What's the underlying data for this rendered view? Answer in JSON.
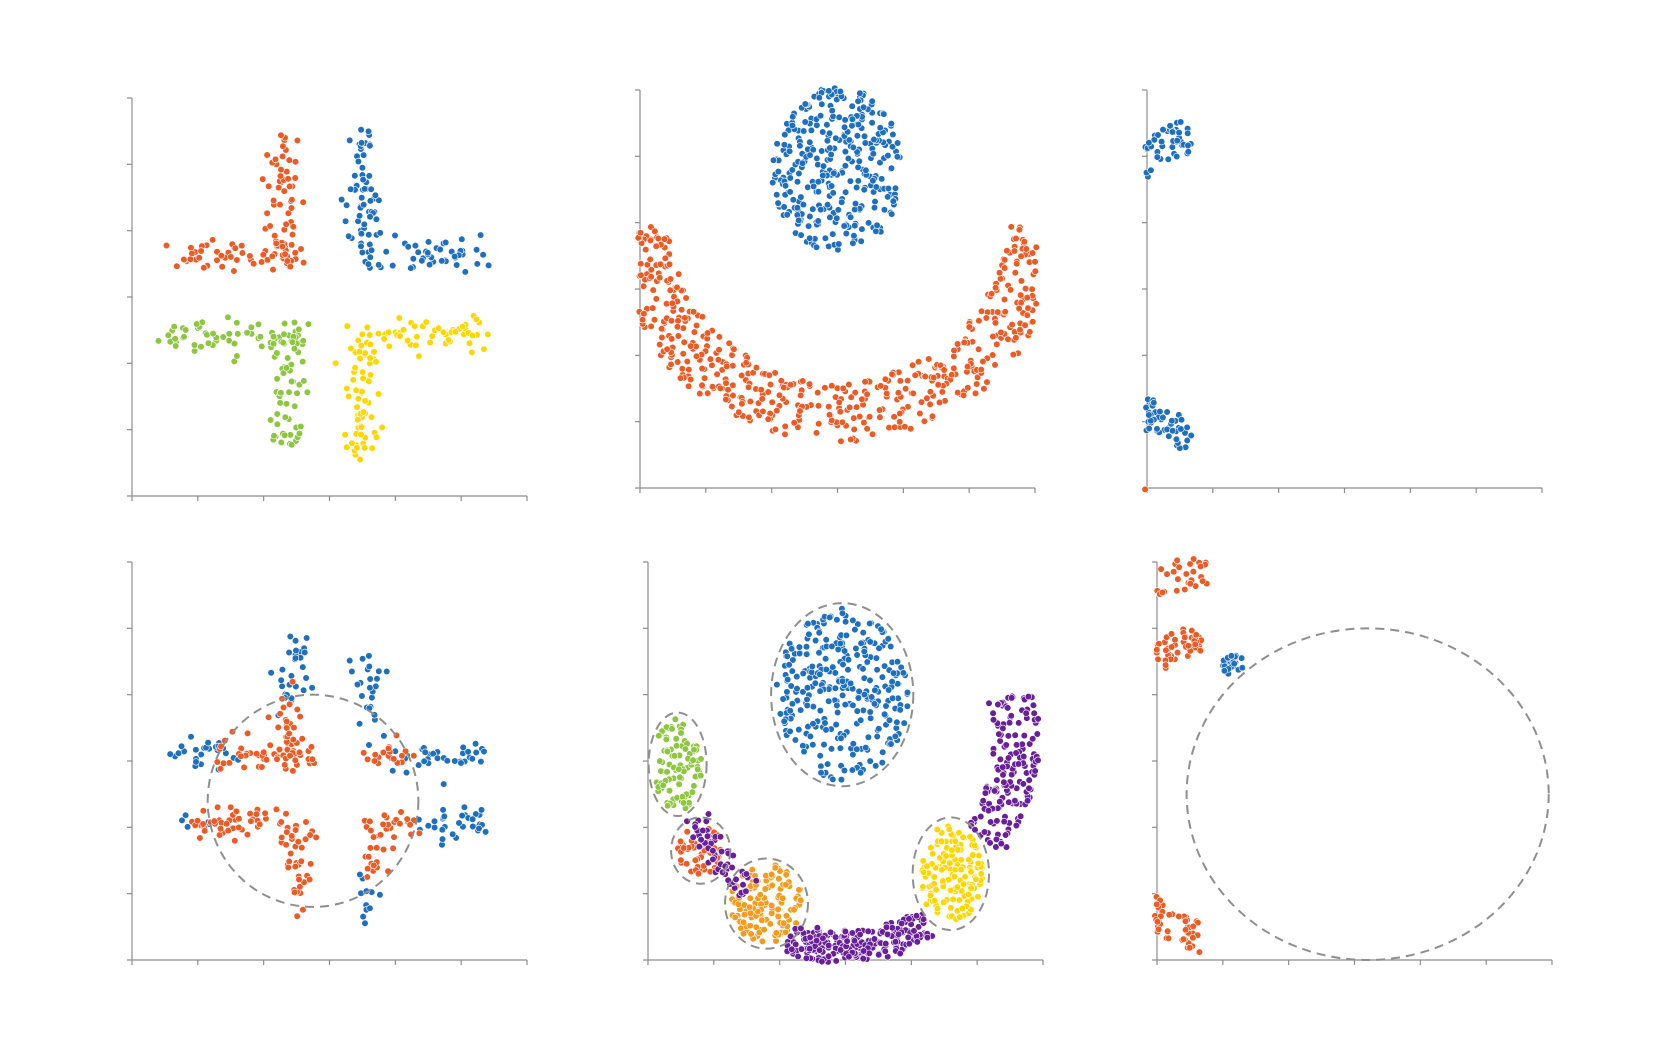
{
  "colors": {
    "axis": "#8c8c8c",
    "blue": "#1f6fc0",
    "orange": "#ee5a24",
    "green": "#8dc63f",
    "yellow": "#ffd700",
    "purple": "#6a1f9a",
    "amber": "#f59a1a",
    "dashed_outline": "#8f8f8f"
  },
  "chart_data": [
    {
      "type": "scatter",
      "title": "",
      "xlabel": "",
      "ylabel": "",
      "xlim": [
        0,
        6
      ],
      "ylim": [
        0,
        6
      ],
      "grid": false,
      "shapes": [
        {
          "kind": "segments",
          "color": "orange",
          "n": 110,
          "spread": 0.12,
          "segs": [
            [
              0.6,
              3.6,
              2.6,
              3.6
            ],
            [
              2.3,
              3.6,
              2.3,
              5.5
            ]
          ]
        },
        {
          "kind": "segments",
          "color": "blue",
          "n": 110,
          "spread": 0.12,
          "segs": [
            [
              3.5,
              3.6,
              5.4,
              3.6
            ],
            [
              3.5,
              3.6,
              3.5,
              5.5
            ]
          ]
        },
        {
          "kind": "segments",
          "color": "green",
          "n": 120,
          "spread": 0.14,
          "segs": [
            [
              0.6,
              2.4,
              2.6,
              2.4
            ],
            [
              2.4,
              2.4,
              2.4,
              0.8
            ]
          ]
        },
        {
          "kind": "segments",
          "color": "yellow",
          "n": 120,
          "spread": 0.14,
          "segs": [
            [
              3.5,
              2.4,
              5.4,
              2.4
            ],
            [
              3.5,
              2.4,
              3.5,
              0.7
            ]
          ]
        }
      ]
    },
    {
      "type": "scatter",
      "title": "",
      "xlabel": "",
      "ylabel": "",
      "xlim": [
        0,
        6
      ],
      "ylim": [
        0,
        6
      ],
      "grid": false,
      "shapes": [
        {
          "kind": "ellipse",
          "color": "blue",
          "n": 330,
          "cx": 3.0,
          "cy": 4.8,
          "rx": 1.0,
          "ry": 1.25
        },
        {
          "kind": "arc",
          "color": "orange",
          "n": 560,
          "cx": 3.0,
          "cy": 4.2,
          "r": 3.05,
          "width": 0.9,
          "a0": 185,
          "a1": 355
        }
      ]
    },
    {
      "type": "scatter",
      "title": "",
      "xlabel": "",
      "ylabel": "",
      "xlim": [
        0,
        6
      ],
      "ylim": [
        0,
        6
      ],
      "grid": false,
      "shapes": [
        {
          "kind": "arc",
          "color": "blue",
          "n": 280,
          "cx": 1.0,
          "cy": 3.05,
          "r": 2.3,
          "width": 0.5,
          "a0": 100,
          "a1": 260,
          "sx": 0.8
        },
        {
          "kind": "arc",
          "color": "orange",
          "n": 420,
          "cx": 1.0,
          "cy": 3.0,
          "r": 3.5,
          "width": 0.55,
          "a0": 95,
          "a1": 265,
          "sx": 0.85
        }
      ]
    },
    {
      "type": "scatter",
      "title": "",
      "xlabel": "",
      "ylabel": "",
      "xlim": [
        0,
        6
      ],
      "ylim": [
        0,
        6
      ],
      "grid": false,
      "shapes": [
        {
          "kind": "segments",
          "color": "blue",
          "n": 55,
          "spread": 0.12,
          "segs": [
            [
              0.7,
              3.05,
              1.4,
              3.05
            ],
            [
              2.4,
              3.9,
              2.4,
              4.8
            ]
          ]
        },
        {
          "kind": "segments",
          "color": "blue",
          "n": 60,
          "spread": 0.12,
          "segs": [
            [
              3.9,
              3.05,
              5.4,
              3.05
            ],
            [
              3.6,
              3.6,
              3.6,
              4.7
            ]
          ]
        },
        {
          "kind": "segments",
          "color": "blue",
          "n": 50,
          "spread": 0.12,
          "segs": [
            [
              0.8,
              2.05,
              1.2,
              2.05
            ],
            [
              4.3,
              2.05,
              5.4,
              2.05
            ],
            [
              3.6,
              0.8,
              3.6,
              1.3
            ]
          ]
        },
        {
          "kind": "segments",
          "color": "orange",
          "n": 220,
          "spread": 0.12,
          "segs": [
            [
              1.3,
              3.1,
              2.8,
              3.1
            ],
            [
              2.4,
              3.1,
              2.4,
              3.9
            ],
            [
              3.6,
              3.1,
              4.1,
              3.1
            ],
            [
              1.0,
              2.05,
              2.7,
              2.05
            ],
            [
              2.5,
              2.05,
              2.5,
              0.9
            ],
            [
              3.6,
              2.05,
              4.2,
              2.05
            ],
            [
              3.7,
              2.05,
              3.7,
              1.3
            ]
          ]
        }
      ],
      "outline": {
        "cx": 2.75,
        "cy": 2.4,
        "rx": 1.6,
        "ry": 1.6
      }
    },
    {
      "type": "scatter",
      "title": "",
      "xlabel": "",
      "ylabel": "",
      "xlim": [
        0,
        6
      ],
      "ylim": [
        0,
        6
      ],
      "grid": false,
      "shapes": [
        {
          "kind": "ellipse",
          "color": "blue",
          "n": 300,
          "cx": 2.95,
          "cy": 4.0,
          "rx": 1.0,
          "ry": 1.3
        },
        {
          "kind": "ellipse",
          "color": "green",
          "n": 90,
          "cx": 0.45,
          "cy": 2.95,
          "rx": 0.38,
          "ry": 0.7
        },
        {
          "kind": "ellipse",
          "color": "orange",
          "n": 50,
          "cx": 0.8,
          "cy": 1.65,
          "rx": 0.35,
          "ry": 0.4
        },
        {
          "kind": "ellipse",
          "color": "amber",
          "n": 130,
          "cx": 1.8,
          "cy": 0.85,
          "rx": 0.55,
          "ry": 0.6
        },
        {
          "kind": "ellipse",
          "color": "yellow",
          "n": 140,
          "cx": 4.6,
          "cy": 1.3,
          "rx": 0.5,
          "ry": 0.75
        },
        {
          "kind": "arc",
          "color": "purple",
          "n": 230,
          "cx": 3.0,
          "cy": 2.7,
          "r": 2.5,
          "width": 0.5,
          "a0": 250,
          "a1": 300
        },
        {
          "kind": "arc",
          "color": "purple",
          "n": 170,
          "cx": 3.0,
          "cy": 3.3,
          "r": 2.6,
          "width": 0.7,
          "a0": 325,
          "a1": 375
        },
        {
          "kind": "arc",
          "color": "purple",
          "n": 60,
          "cx": 3.0,
          "cy": 3.0,
          "r": 2.4,
          "width": 0.4,
          "a0": 200,
          "a1": 235
        }
      ],
      "outlines": [
        {
          "cx": 2.95,
          "cy": 4.0,
          "rx": 1.08,
          "ry": 1.38
        },
        {
          "cx": 0.45,
          "cy": 2.95,
          "rx": 0.44,
          "ry": 0.78
        },
        {
          "cx": 0.8,
          "cy": 1.65,
          "rx": 0.45,
          "ry": 0.5
        },
        {
          "cx": 1.8,
          "cy": 0.85,
          "rx": 0.63,
          "ry": 0.68
        },
        {
          "cx": 4.6,
          "cy": 1.3,
          "rx": 0.58,
          "ry": 0.85
        }
      ]
    },
    {
      "type": "scatter",
      "title": "",
      "xlabel": "",
      "ylabel": "",
      "xlim": [
        0,
        6
      ],
      "ylim": [
        0,
        6
      ],
      "grid": false,
      "shapes": [
        {
          "kind": "ellipse",
          "color": "blue",
          "n": 25,
          "cx": 1.15,
          "cy": 4.45,
          "rx": 0.2,
          "ry": 0.15
        },
        {
          "kind": "arc",
          "color": "orange",
          "n": 300,
          "cx": 1.0,
          "cy": 2.6,
          "r": 2.3,
          "width": 0.45,
          "a0": 100,
          "a1": 260,
          "sx": 0.8
        },
        {
          "kind": "arc",
          "color": "orange",
          "n": 430,
          "cx": 1.0,
          "cy": 2.5,
          "r": 3.4,
          "width": 0.5,
          "a0": 95,
          "a1": 262,
          "sx": 0.85
        }
      ],
      "outline": {
        "cx": 3.2,
        "cy": 2.5,
        "rx": 2.75,
        "ry": 2.5
      }
    }
  ]
}
